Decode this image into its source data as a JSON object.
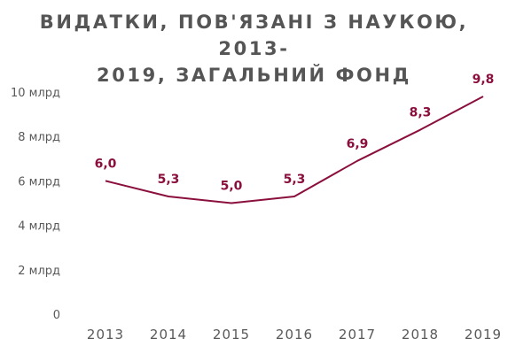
{
  "chart_data": {
    "type": "line",
    "title_lines": [
      "ВИДАТКИ, ПОВ'ЯЗАНІ З НАУКОЮ, 2013-",
      "2019, ЗАГАЛЬНИЙ ФОНД"
    ],
    "xlabel": "",
    "ylabel": "",
    "categories": [
      "2013",
      "2014",
      "2015",
      "2016",
      "2017",
      "2018",
      "2019"
    ],
    "series": [
      {
        "values": [
          6.0,
          5.3,
          5.0,
          5.3,
          6.9,
          8.3,
          9.8
        ],
        "data_labels": [
          "6,0",
          "5,3",
          "5,0",
          "5,3",
          "6,9",
          "8,3",
          "9,8"
        ]
      }
    ],
    "y_ticks": [
      0,
      2,
      4,
      6,
      8,
      10
    ],
    "y_tick_labels": [
      "0",
      "2 млрд",
      "4 млрд",
      "6 млрд",
      "8 млрд",
      "10 млрд"
    ],
    "ylim": [
      0,
      10
    ],
    "grid": false,
    "legend": "none",
    "line_color": "#8b0f3d",
    "label_color": "#8b0f3d",
    "axis_text_color": "#595959",
    "title_color": "#555555"
  }
}
